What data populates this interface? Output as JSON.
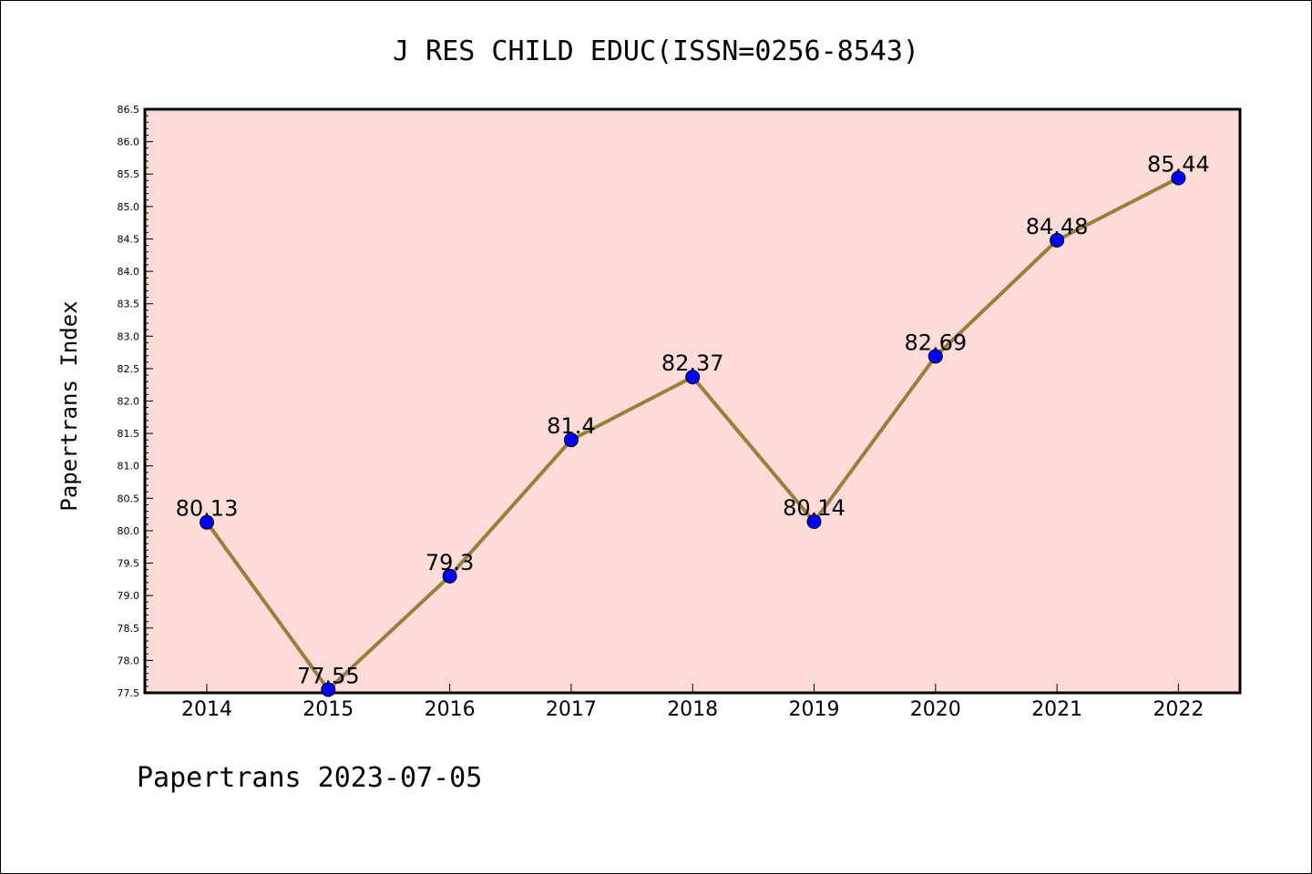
{
  "chart_data": {
    "type": "line",
    "title": "J RES CHILD EDUC(ISSN=0256-8543)",
    "ylabel": "Papertrans Index",
    "xlabel": "",
    "footer": "Papertrans 2023-07-05",
    "categories": [
      "2014",
      "2015",
      "2016",
      "2017",
      "2018",
      "2019",
      "2020",
      "2021",
      "2022"
    ],
    "series": [
      {
        "values": [
          80.13,
          77.55,
          79.3,
          81.4,
          82.37,
          80.14,
          82.69,
          84.48,
          85.44
        ],
        "data_labels": [
          "80.13",
          "77.55",
          "79.3",
          "81.4",
          "82.37",
          "80.14",
          "82.69",
          "84.48",
          "85.44"
        ]
      }
    ],
    "ylim": [
      77.5,
      86.5
    ],
    "yticks": [
      "77.5",
      "78.0",
      "78.5",
      "79.0",
      "79.5",
      "80.0",
      "80.5",
      "81.0",
      "81.5",
      "82.0",
      "82.5",
      "83.0",
      "83.5",
      "84.0",
      "84.5",
      "85.0",
      "85.5",
      "86.0",
      "86.5"
    ],
    "grid": false,
    "colors": {
      "plot_background": "#fddbd9",
      "line": "#9a7f3a",
      "marker": "#0000ff"
    }
  }
}
